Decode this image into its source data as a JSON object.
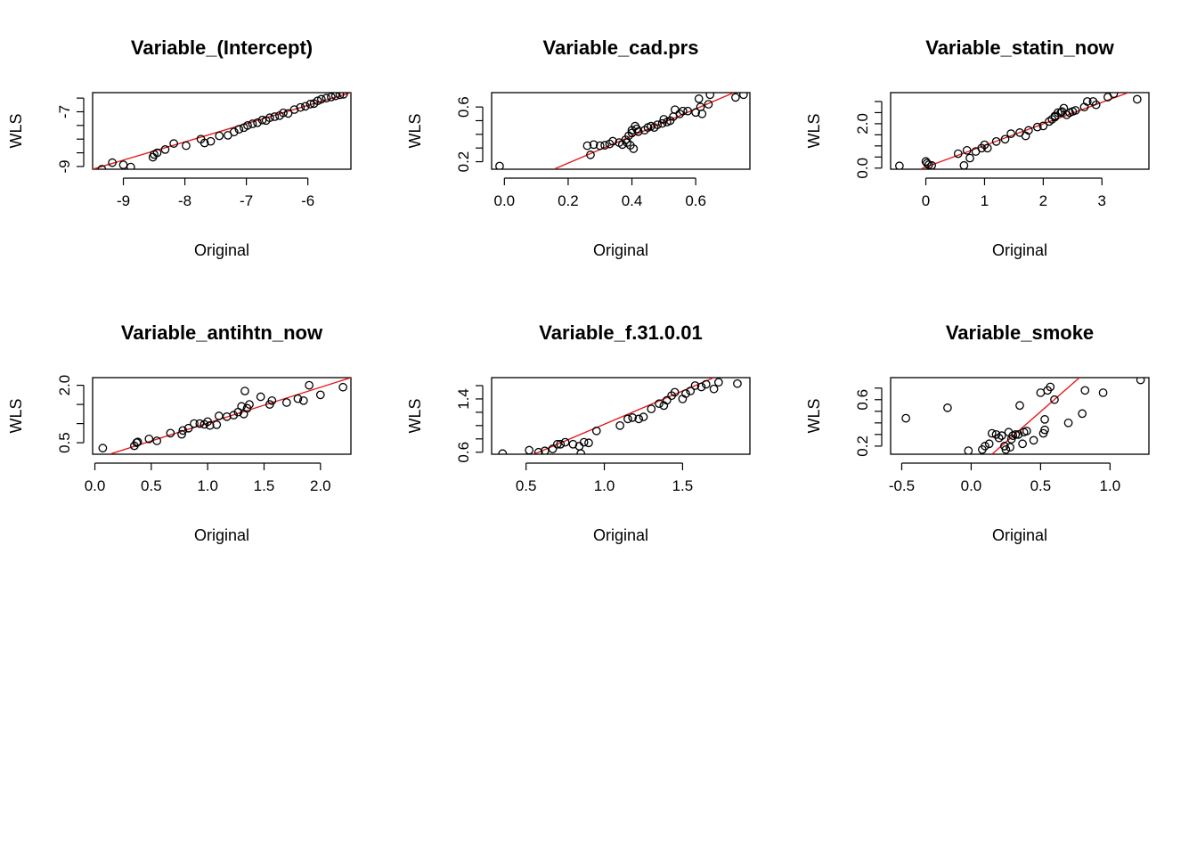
{
  "chart_data": [
    {
      "type": "scatter",
      "title": "Variable_(Intercept)",
      "xlabel": "Original",
      "ylabel": "WLS",
      "xlim": [
        -9.5,
        -5.3
      ],
      "ylim": [
        -9.1,
        -6.3
      ],
      "xticks": [
        "-9",
        "-8",
        "-7",
        "-6"
      ],
      "yticks": [
        "-9",
        "-7"
      ],
      "ytick_marks": [
        -9,
        -8.5,
        -8,
        -7.5,
        -7,
        -6.5
      ],
      "fit_line": {
        "x1": -9.5,
        "y1": -9.1,
        "x2": -5.3,
        "y2": -6.3,
        "color": "#e41a1c"
      },
      "points": [
        [
          -9.35,
          -9.1
        ],
        [
          -9.18,
          -8.86
        ],
        [
          -9.0,
          -8.94
        ],
        [
          -8.88,
          -9.02
        ],
        [
          -8.52,
          -8.66
        ],
        [
          -8.5,
          -8.56
        ],
        [
          -8.45,
          -8.5
        ],
        [
          -8.32,
          -8.38
        ],
        [
          -8.18,
          -8.16
        ],
        [
          -7.98,
          -8.24
        ],
        [
          -7.74,
          -8.0
        ],
        [
          -7.68,
          -8.14
        ],
        [
          -7.58,
          -8.08
        ],
        [
          -7.44,
          -7.88
        ],
        [
          -7.3,
          -7.86
        ],
        [
          -7.2,
          -7.74
        ],
        [
          -7.12,
          -7.64
        ],
        [
          -7.04,
          -7.58
        ],
        [
          -6.98,
          -7.5
        ],
        [
          -6.9,
          -7.44
        ],
        [
          -6.82,
          -7.4
        ],
        [
          -6.74,
          -7.3
        ],
        [
          -6.68,
          -7.32
        ],
        [
          -6.62,
          -7.22
        ],
        [
          -6.54,
          -7.18
        ],
        [
          -6.46,
          -7.14
        ],
        [
          -6.4,
          -7.04
        ],
        [
          -6.32,
          -7.06
        ],
        [
          -6.22,
          -6.92
        ],
        [
          -6.12,
          -6.84
        ],
        [
          -6.04,
          -6.8
        ],
        [
          -5.96,
          -6.72
        ],
        [
          -5.9,
          -6.7
        ],
        [
          -5.84,
          -6.6
        ],
        [
          -5.78,
          -6.54
        ],
        [
          -5.7,
          -6.5
        ],
        [
          -5.62,
          -6.46
        ],
        [
          -5.55,
          -6.42
        ],
        [
          -5.48,
          -6.38
        ],
        [
          -5.42,
          -6.36
        ]
      ]
    },
    {
      "type": "scatter",
      "title": "Variable_cad.prs",
      "xlabel": "Original",
      "ylabel": "WLS",
      "xlim": [
        -0.04,
        0.77
      ],
      "ylim": [
        0.145,
        0.705
      ],
      "xticks": [
        "0.0",
        "0.2",
        "0.4",
        "0.6"
      ],
      "yticks": [
        "0.2",
        "0.6"
      ],
      "ytick_marks": [
        0.2,
        0.3,
        0.4,
        0.5,
        0.6
      ],
      "fit_line": {
        "x1": 0.155,
        "y1": 0.145,
        "x2": 0.72,
        "y2": 0.705,
        "color": "#e41a1c"
      },
      "points": [
        [
          -0.015,
          0.168
        ],
        [
          0.26,
          0.317
        ],
        [
          0.27,
          0.25
        ],
        [
          0.28,
          0.325
        ],
        [
          0.3,
          0.317
        ],
        [
          0.315,
          0.32
        ],
        [
          0.33,
          0.33
        ],
        [
          0.34,
          0.35
        ],
        [
          0.36,
          0.34
        ],
        [
          0.37,
          0.325
        ],
        [
          0.38,
          0.36
        ],
        [
          0.385,
          0.34
        ],
        [
          0.39,
          0.39
        ],
        [
          0.395,
          0.32
        ],
        [
          0.4,
          0.41
        ],
        [
          0.4,
          0.43
        ],
        [
          0.405,
          0.295
        ],
        [
          0.41,
          0.46
        ],
        [
          0.415,
          0.44
        ],
        [
          0.42,
          0.42
        ],
        [
          0.44,
          0.43
        ],
        [
          0.45,
          0.45
        ],
        [
          0.46,
          0.46
        ],
        [
          0.47,
          0.45
        ],
        [
          0.48,
          0.47
        ],
        [
          0.495,
          0.48
        ],
        [
          0.5,
          0.51
        ],
        [
          0.51,
          0.49
        ],
        [
          0.52,
          0.5
        ],
        [
          0.53,
          0.53
        ],
        [
          0.535,
          0.58
        ],
        [
          0.55,
          0.55
        ],
        [
          0.56,
          0.57
        ],
        [
          0.575,
          0.57
        ],
        [
          0.6,
          0.56
        ],
        [
          0.61,
          0.66
        ],
        [
          0.615,
          0.6
        ],
        [
          0.62,
          0.55
        ],
        [
          0.64,
          0.62
        ],
        [
          0.645,
          0.69
        ],
        [
          0.725,
          0.67
        ],
        [
          0.75,
          0.69
        ]
      ]
    },
    {
      "type": "scatter",
      "title": "Variable_statin_now",
      "xlabel": "Original",
      "ylabel": "WLS",
      "xlim": [
        -0.6,
        3.8
      ],
      "ylim": [
        -0.05,
        3.4
      ],
      "xticks": [
        "0",
        "1",
        "2",
        "3"
      ],
      "yticks": [
        "0.0",
        "2.0"
      ],
      "ytick_marks": [
        0,
        0.5,
        1,
        1.5,
        2,
        2.5,
        3
      ],
      "fit_line": {
        "x1": -0.1,
        "y1": -0.05,
        "x2": 3.45,
        "y2": 3.4,
        "color": "#e41a1c"
      },
      "points": [
        [
          -0.45,
          0.1
        ],
        [
          0.0,
          0.3
        ],
        [
          0.02,
          0.22
        ],
        [
          0.05,
          0.15
        ],
        [
          0.1,
          0.12
        ],
        [
          0.55,
          0.65
        ],
        [
          0.65,
          0.12
        ],
        [
          0.7,
          0.8
        ],
        [
          0.75,
          0.45
        ],
        [
          0.85,
          0.75
        ],
        [
          0.95,
          0.9
        ],
        [
          1.0,
          1.05
        ],
        [
          1.05,
          0.9
        ],
        [
          1.2,
          1.2
        ],
        [
          1.35,
          1.3
        ],
        [
          1.45,
          1.55
        ],
        [
          1.6,
          1.6
        ],
        [
          1.7,
          1.45
        ],
        [
          1.75,
          1.7
        ],
        [
          1.9,
          1.85
        ],
        [
          2.0,
          1.9
        ],
        [
          2.1,
          2.1
        ],
        [
          2.15,
          2.2
        ],
        [
          2.2,
          2.3
        ],
        [
          2.2,
          2.35
        ],
        [
          2.25,
          2.5
        ],
        [
          2.3,
          2.5
        ],
        [
          2.32,
          2.55
        ],
        [
          2.35,
          2.7
        ],
        [
          2.4,
          2.4
        ],
        [
          2.45,
          2.5
        ],
        [
          2.5,
          2.55
        ],
        [
          2.55,
          2.6
        ],
        [
          2.7,
          2.75
        ],
        [
          2.75,
          3.0
        ],
        [
          2.85,
          3.0
        ],
        [
          2.9,
          2.85
        ],
        [
          3.1,
          3.2
        ],
        [
          3.2,
          3.35
        ],
        [
          3.6,
          3.1
        ]
      ]
    },
    {
      "type": "scatter",
      "title": "Variable_antihtn_now",
      "xlabel": "Original",
      "ylabel": "WLS",
      "xlim": [
        -0.02,
        2.27
      ],
      "ylim": [
        0.2,
        2.2
      ],
      "xticks": [
        "0.0",
        "0.5",
        "1.0",
        "1.5",
        "2.0"
      ],
      "yticks": [
        "0.5",
        "2.0"
      ],
      "ytick_marks": [
        0.5,
        1.0,
        1.5,
        2.0
      ],
      "fit_line": {
        "x1": 0.13,
        "y1": 0.2,
        "x2": 2.27,
        "y2": 2.2,
        "color": "#e41a1c"
      },
      "points": [
        [
          0.07,
          0.36
        ],
        [
          0.35,
          0.42
        ],
        [
          0.37,
          0.5
        ],
        [
          0.38,
          0.52
        ],
        [
          0.48,
          0.6
        ],
        [
          0.55,
          0.55
        ],
        [
          0.67,
          0.75
        ],
        [
          0.77,
          0.72
        ],
        [
          0.78,
          0.82
        ],
        [
          0.83,
          0.88
        ],
        [
          0.88,
          1.0
        ],
        [
          0.93,
          1.0
        ],
        [
          0.97,
          0.98
        ],
        [
          1.0,
          1.05
        ],
        [
          1.02,
          0.95
        ],
        [
          1.08,
          0.97
        ],
        [
          1.1,
          1.2
        ],
        [
          1.17,
          1.18
        ],
        [
          1.23,
          1.22
        ],
        [
          1.27,
          1.3
        ],
        [
          1.3,
          1.45
        ],
        [
          1.32,
          1.25
        ],
        [
          1.35,
          1.4
        ],
        [
          1.33,
          1.85
        ],
        [
          1.37,
          1.5
        ],
        [
          1.47,
          1.7
        ],
        [
          1.55,
          1.5
        ],
        [
          1.57,
          1.6
        ],
        [
          1.7,
          1.55
        ],
        [
          1.8,
          1.65
        ],
        [
          1.85,
          1.6
        ],
        [
          1.9,
          2.0
        ],
        [
          2.0,
          1.75
        ],
        [
          2.2,
          1.95
        ]
      ]
    },
    {
      "type": "scatter",
      "title": "Variable_f.31.0.01",
      "xlabel": "Original",
      "ylabel": "WLS",
      "xlim": [
        0.28,
        1.93
      ],
      "ylim": [
        0.57,
        1.72
      ],
      "xticks": [
        "0.5",
        "1.0",
        "1.5"
      ],
      "yticks": [
        "0.6",
        "1.4"
      ],
      "ytick_marks": [
        0.6,
        0.8,
        1.0,
        1.2,
        1.4,
        1.6
      ],
      "fit_line": {
        "x1": 0.55,
        "y1": 0.57,
        "x2": 1.7,
        "y2": 1.72,
        "color": "#e41a1c"
      },
      "points": [
        [
          0.35,
          0.58
        ],
        [
          0.52,
          0.63
        ],
        [
          0.58,
          0.6
        ],
        [
          0.62,
          0.62
        ],
        [
          0.67,
          0.65
        ],
        [
          0.7,
          0.72
        ],
        [
          0.72,
          0.72
        ],
        [
          0.75,
          0.75
        ],
        [
          0.8,
          0.72
        ],
        [
          0.84,
          0.69
        ],
        [
          0.85,
          0.58
        ],
        [
          0.87,
          0.75
        ],
        [
          0.9,
          0.74
        ],
        [
          0.95,
          0.92
        ],
        [
          1.1,
          1.0
        ],
        [
          1.15,
          1.1
        ],
        [
          1.18,
          1.12
        ],
        [
          1.22,
          1.1
        ],
        [
          1.25,
          1.13
        ],
        [
          1.3,
          1.25
        ],
        [
          1.35,
          1.33
        ],
        [
          1.38,
          1.3
        ],
        [
          1.4,
          1.38
        ],
        [
          1.43,
          1.45
        ],
        [
          1.45,
          1.5
        ],
        [
          1.5,
          1.4
        ],
        [
          1.52,
          1.48
        ],
        [
          1.55,
          1.52
        ],
        [
          1.58,
          1.6
        ],
        [
          1.62,
          1.58
        ],
        [
          1.65,
          1.62
        ],
        [
          1.7,
          1.55
        ],
        [
          1.73,
          1.65
        ],
        [
          1.85,
          1.63
        ]
      ]
    },
    {
      "type": "scatter",
      "title": "Variable_smoke",
      "xlabel": "Original",
      "ylabel": "WLS",
      "xlim": [
        -0.58,
        1.28
      ],
      "ylim": [
        0.13,
        0.79
      ],
      "xticks": [
        "-0.5",
        "0.0",
        "0.5",
        "1.0"
      ],
      "yticks": [
        "0.2",
        "0.6"
      ],
      "ytick_marks": [
        0.2,
        0.3,
        0.4,
        0.5,
        0.6,
        0.7
      ],
      "fit_line": {
        "x1": 0.15,
        "y1": 0.13,
        "x2": 0.78,
        "y2": 0.79,
        "color": "#e41a1c"
      },
      "points": [
        [
          -0.47,
          0.44
        ],
        [
          -0.17,
          0.53
        ],
        [
          -0.02,
          0.16
        ],
        [
          0.08,
          0.17
        ],
        [
          0.1,
          0.2
        ],
        [
          0.13,
          0.22
        ],
        [
          0.15,
          0.31
        ],
        [
          0.18,
          0.3
        ],
        [
          0.2,
          0.27
        ],
        [
          0.22,
          0.29
        ],
        [
          0.24,
          0.2
        ],
        [
          0.25,
          0.17
        ],
        [
          0.27,
          0.32
        ],
        [
          0.28,
          0.19
        ],
        [
          0.29,
          0.26
        ],
        [
          0.3,
          0.29
        ],
        [
          0.32,
          0.3
        ],
        [
          0.34,
          0.3
        ],
        [
          0.35,
          0.55
        ],
        [
          0.37,
          0.22
        ],
        [
          0.38,
          0.32
        ],
        [
          0.4,
          0.33
        ],
        [
          0.45,
          0.25
        ],
        [
          0.5,
          0.66
        ],
        [
          0.52,
          0.31
        ],
        [
          0.53,
          0.34
        ],
        [
          0.53,
          0.43
        ],
        [
          0.55,
          0.68
        ],
        [
          0.57,
          0.71
        ],
        [
          0.6,
          0.6
        ],
        [
          0.7,
          0.4
        ],
        [
          0.8,
          0.48
        ],
        [
          0.82,
          0.68
        ],
        [
          0.95,
          0.66
        ],
        [
          1.22,
          0.77
        ]
      ]
    }
  ]
}
